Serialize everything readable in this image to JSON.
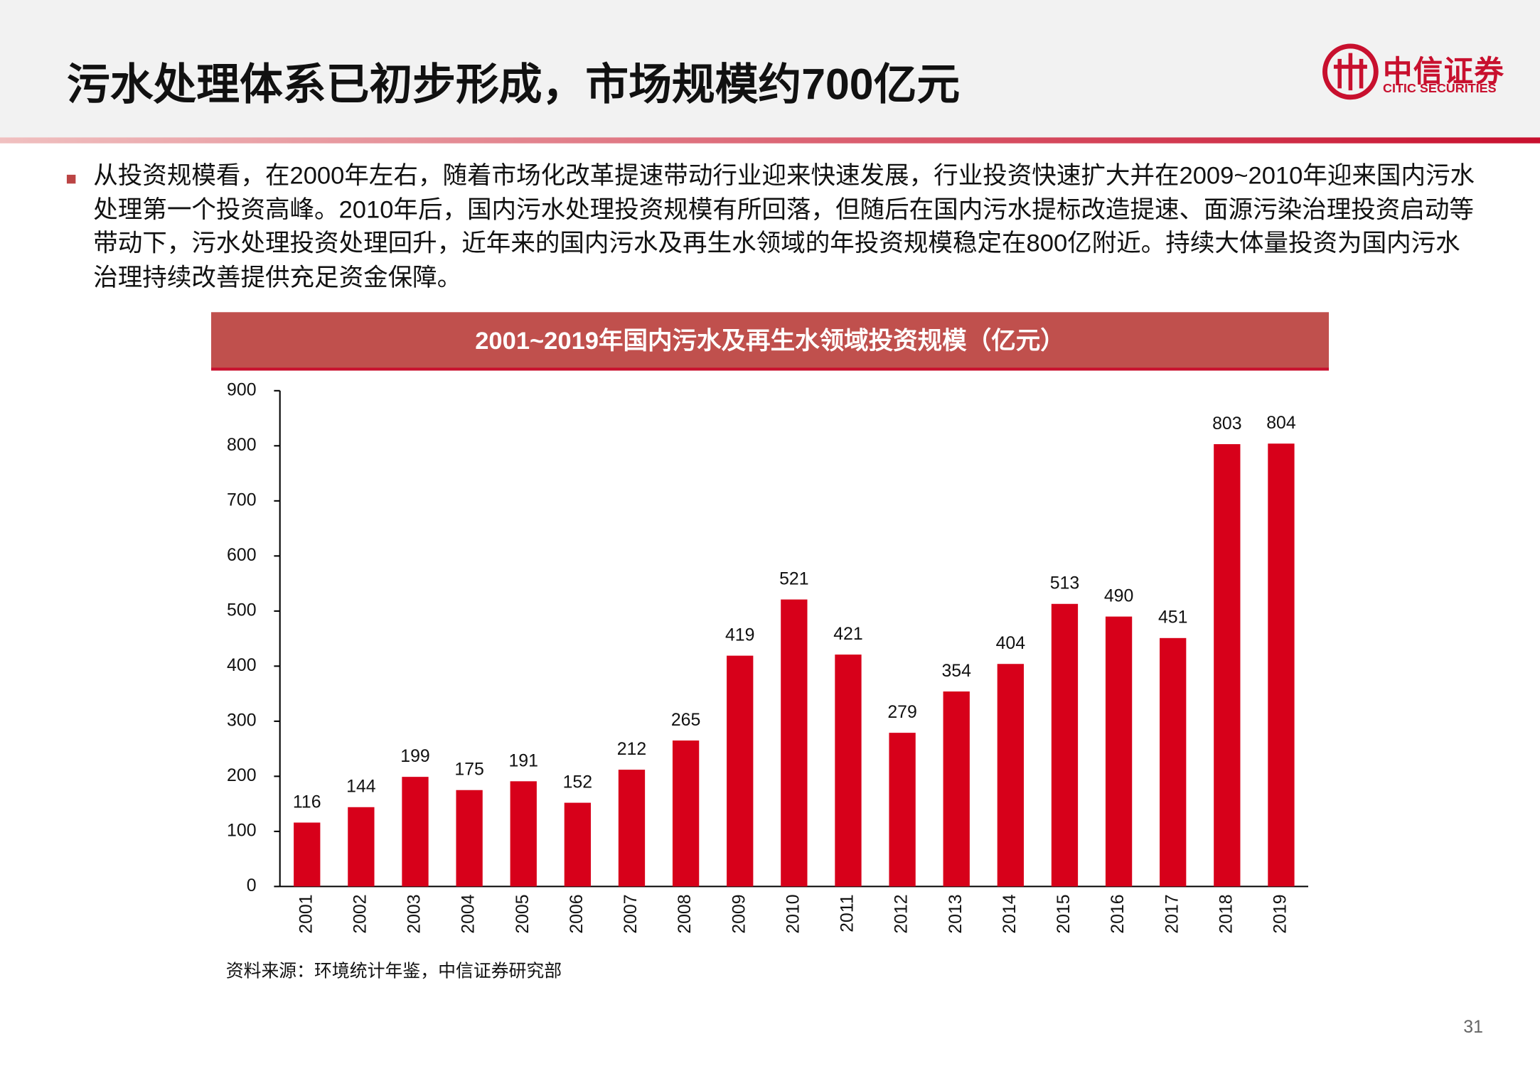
{
  "header": {
    "title": "污水处理体系已初步形成，市场规模约700亿元"
  },
  "logo": {
    "name": "中信证券",
    "name_en": "CITIC SECURITIES"
  },
  "bullet": "从投资规模看，在2000年左右，随着市场化改革提速带动行业迎来快速发展，行业投资快速扩大并在2009~2010年迎来国内污水处理第一个投资高峰。2010年后，国内污水处理投资规模有所回落，但随后在国内污水提标改造提速、面源污染治理投资启动等带动下，污水处理投资处理回升，近年来的国内污水及再生水领域的年投资规模稳定在800亿附近。持续大体量投资为国内污水治理持续改善提供充足资金保障。",
  "chart_data": {
    "type": "bar",
    "title": "2001~2019年国内污水及再生水领域投资规模（亿元）",
    "categories": [
      "2001",
      "2002",
      "2003",
      "2004",
      "2005",
      "2006",
      "2007",
      "2008",
      "2009",
      "2010",
      "2011",
      "2012",
      "2013",
      "2014",
      "2015",
      "2016",
      "2017",
      "2018",
      "2019"
    ],
    "values": [
      116,
      144,
      199,
      175,
      191,
      152,
      212,
      265,
      419,
      521,
      421,
      279,
      354,
      404,
      513,
      490,
      451,
      803,
      804
    ],
    "color": "#d7001a",
    "ylim": [
      0,
      900
    ],
    "yticks": [
      0,
      100,
      200,
      300,
      400,
      500,
      600,
      700,
      800,
      900
    ],
    "grid": false
  },
  "source": "资料来源：环境统计年鉴，中信证券研究部",
  "page_number": "31"
}
